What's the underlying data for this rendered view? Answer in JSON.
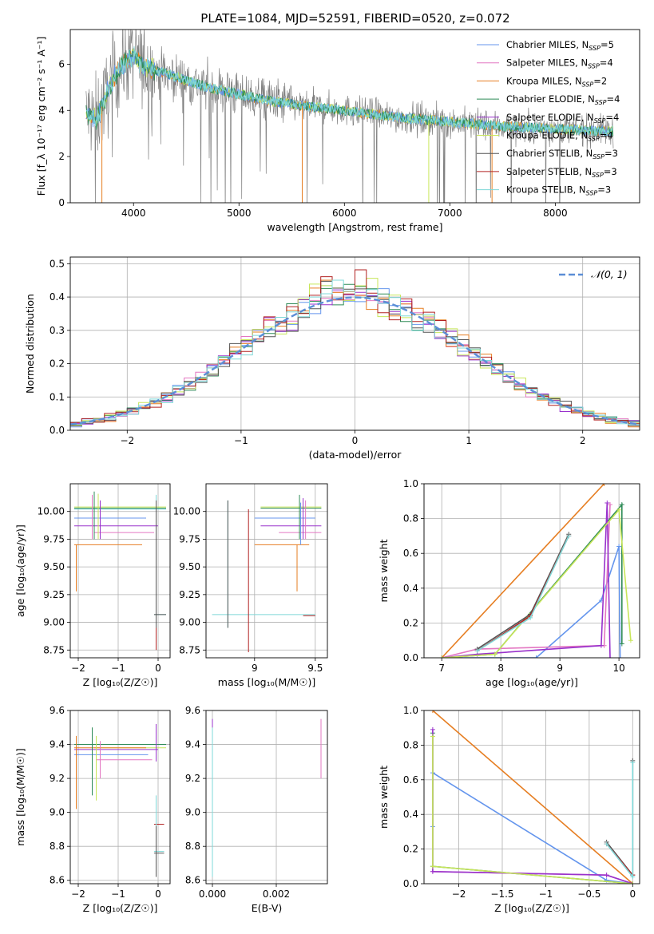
{
  "figure": {
    "title": "PLATE=1084, MJD=52591, FIBERID=0520, z=0.072"
  },
  "colors": {
    "series": [
      "#6495ed",
      "#e377c2",
      "#e67e22",
      "#2e8b57",
      "#9932cc",
      "#c8e65a",
      "#555555",
      "#b22222",
      "#7fd8d8"
    ],
    "data": "#808080",
    "grid": "#b0b0b0",
    "gauss": "#5b8ed6"
  },
  "chart_data": [
    {
      "id": "spectrum",
      "type": "line",
      "xlabel": "wavelength [Angstrom, rest frame]",
      "ylabel": "Flux [f_λ 10⁻¹⁷ erg cm⁻² s⁻¹ A⁻¹]",
      "xlim": [
        3400,
        8800
      ],
      "ylim": [
        0,
        7.5
      ],
      "xticks": [
        4000,
        5000,
        6000,
        7000,
        8000
      ],
      "yticks": [
        0,
        2,
        4,
        6
      ],
      "grid": false,
      "legend": "top-right",
      "legend_entries": [
        {
          "label": "Chabrier MILES, N",
          "sub": "SSP",
          "tail": "=5"
        },
        {
          "label": "Salpeter MILES, N",
          "sub": "SSP",
          "tail": "=4"
        },
        {
          "label": "Kroupa MILES, N",
          "sub": "SSP",
          "tail": "=2"
        },
        {
          "label": "Chabrier ELODIE, N",
          "sub": "SSP",
          "tail": "=4"
        },
        {
          "label": "Salpeter ELODIE, N",
          "sub": "SSP",
          "tail": "=4"
        },
        {
          "label": "Kroupa ELODIE, N",
          "sub": "SSP",
          "tail": "=4"
        },
        {
          "label": "Chabrier STELIB, N",
          "sub": "SSP",
          "tail": "=3"
        },
        {
          "label": "Salpeter STELIB, N",
          "sub": "SSP",
          "tail": "=3"
        },
        {
          "label": "Kroupa STELIB, N",
          "sub": "SSP",
          "tail": "=3"
        }
      ],
      "data_range": [
        3550,
        8550
      ],
      "model_shape": {
        "x": [
          3550,
          3650,
          3800,
          3900,
          4000,
          4100,
          4300,
          4500,
          4700,
          5000,
          5300,
          5600,
          6000,
          6500,
          7000,
          7500,
          8000,
          8500
        ],
        "y": [
          3.9,
          3.6,
          5.3,
          6.0,
          6.4,
          5.9,
          5.6,
          5.3,
          5.0,
          4.7,
          4.4,
          4.2,
          4.0,
          3.7,
          3.5,
          3.3,
          3.2,
          3.1
        ]
      },
      "model_dips": [
        3700,
        5600,
        6800,
        7400
      ],
      "model_dip_colors": [
        "#e67e22",
        "#e67e22",
        "#c8e65a",
        "#e67e22"
      ]
    },
    {
      "id": "residuals",
      "type": "line",
      "xlabel": "(data-model)/error",
      "ylabel": "Normed distribution",
      "xlim": [
        -2.5,
        2.5
      ],
      "ylim": [
        0,
        0.52
      ],
      "xticks": [
        -2,
        -1,
        0,
        1,
        2
      ],
      "yticks": [
        0.0,
        0.1,
        0.2,
        0.3,
        0.4,
        0.5
      ],
      "grid": true,
      "legend": "top-right",
      "legend_label": "𝒩(0, 1)",
      "bin_width": 0.1
    },
    {
      "id": "age_vs_Z",
      "type": "scatter",
      "xlabel": "Z [log₁₀(Z/Z☉)]",
      "ylabel": "age  [log₁₀(age/yr)]",
      "xlim": [
        -2.2,
        0.3
      ],
      "ylim": [
        8.68,
        10.25
      ],
      "xticks": [
        -2,
        -1,
        0
      ],
      "yticks": [
        8.75,
        9.0,
        9.25,
        9.5,
        9.75,
        10.0
      ],
      "grid": true,
      "hlines": [
        {
          "y": 10.04,
          "x": [
            -2.1,
            0.2
          ],
          "c": 5
        },
        {
          "y": 10.03,
          "x": [
            -2.1,
            0.2
          ],
          "c": 3
        },
        {
          "y": 10.02,
          "x": [
            -2.1,
            0.2
          ],
          "c": 8
        },
        {
          "y": 9.94,
          "x": [
            -2.1,
            -0.3
          ],
          "c": 0
        },
        {
          "y": 9.87,
          "x": [
            -2.1,
            0.0
          ],
          "c": 4
        },
        {
          "y": 9.81,
          "x": [
            -1.6,
            -0.1
          ],
          "c": 1
        },
        {
          "y": 9.7,
          "x": [
            -2.1,
            -0.4
          ],
          "c": 2
        },
        {
          "y": 9.07,
          "x": [
            -0.1,
            0.2
          ],
          "c": 8
        },
        {
          "y": 9.07,
          "x": [
            -0.1,
            0.2
          ],
          "c": 6
        }
      ],
      "vlines": [
        {
          "x": -1.6,
          "y": [
            9.75,
            10.18
          ],
          "c": 3
        },
        {
          "x": -1.5,
          "y": [
            9.75,
            10.16
          ],
          "c": 5
        },
        {
          "x": -1.65,
          "y": [
            9.75,
            10.15
          ],
          "c": 1
        },
        {
          "x": -1.45,
          "y": [
            9.75,
            10.1
          ],
          "c": 4
        },
        {
          "x": -2.05,
          "y": [
            9.28,
            9.7
          ],
          "c": 2
        },
        {
          "x": -0.05,
          "y": [
            8.9,
            10.15
          ],
          "c": 8
        },
        {
          "x": -0.05,
          "y": [
            8.9,
            10.1
          ],
          "c": 6
        },
        {
          "x": -0.05,
          "y": [
            8.75,
            8.95
          ],
          "c": 7
        }
      ]
    },
    {
      "id": "age_vs_mass",
      "type": "scatter",
      "xlabel": "mass [log₁₀(M/M☉)]",
      "xlim": [
        8.6,
        9.6
      ],
      "ylim": [
        8.68,
        10.25
      ],
      "xticks": [
        9.0,
        9.5
      ],
      "yticks": [
        8.75,
        9.0,
        9.25,
        9.5,
        9.75,
        10.0
      ],
      "grid": true,
      "hlines": [
        {
          "y": 10.04,
          "x": [
            9.05,
            9.55
          ],
          "c": 5
        },
        {
          "y": 10.03,
          "x": [
            9.05,
            9.55
          ],
          "c": 3
        },
        {
          "y": 9.94,
          "x": [
            9.0,
            9.5
          ],
          "c": 0
        },
        {
          "y": 9.87,
          "x": [
            9.05,
            9.55
          ],
          "c": 4
        },
        {
          "y": 9.81,
          "x": [
            9.2,
            9.55
          ],
          "c": 1
        },
        {
          "y": 9.7,
          "x": [
            9.0,
            9.45
          ],
          "c": 2
        },
        {
          "y": 9.07,
          "x": [
            8.65,
            9.5
          ],
          "c": 8
        },
        {
          "y": 9.06,
          "x": [
            9.4,
            9.5
          ],
          "c": 7
        }
      ],
      "vlines": [
        {
          "x": 8.78,
          "y": [
            8.95,
            10.1
          ],
          "c": 8
        },
        {
          "x": 8.78,
          "y": [
            8.95,
            10.1
          ],
          "c": 6
        },
        {
          "x": 8.95,
          "y": [
            8.73,
            10.02
          ],
          "c": 7
        },
        {
          "x": 9.37,
          "y": [
            9.75,
            10.15
          ],
          "c": 3
        },
        {
          "x": 9.4,
          "y": [
            9.75,
            10.12
          ],
          "c": 4
        },
        {
          "x": 9.42,
          "y": [
            9.75,
            10.1
          ],
          "c": 1
        },
        {
          "x": 9.35,
          "y": [
            9.28,
            9.7
          ],
          "c": 2
        },
        {
          "x": 9.38,
          "y": [
            9.7,
            10.08
          ],
          "c": 0
        }
      ]
    },
    {
      "id": "weight_vs_age",
      "type": "line",
      "xlabel": "age  [log₁₀(age/yr)]",
      "ylabel": "mass weight",
      "xlim": [
        6.7,
        10.35
      ],
      "ylim": [
        0,
        1
      ],
      "xticks": [
        7,
        8,
        9,
        10
      ],
      "yticks": [
        0.0,
        0.2,
        0.4,
        0.6,
        0.8,
        1.0
      ],
      "grid": true,
      "series": [
        {
          "c": 0,
          "x": [
            7.0,
            8.6,
            9.7,
            10.0,
            10.02
          ],
          "y": [
            0.0,
            0.0,
            0.33,
            0.64,
            0.0
          ]
        },
        {
          "c": 1,
          "x": [
            7.0,
            7.6,
            9.75,
            9.85
          ],
          "y": [
            0.0,
            0.05,
            0.07,
            0.88
          ]
        },
        {
          "c": 2,
          "x": [
            7.0,
            9.75
          ],
          "y": [
            0.0,
            1.0
          ]
        },
        {
          "c": 3,
          "x": [
            7.0,
            7.9,
            10.05,
            10.05
          ],
          "y": [
            0.0,
            0.02,
            0.88,
            0.08
          ]
        },
        {
          "c": 4,
          "x": [
            7.0,
            7.6,
            9.7,
            9.8,
            9.85
          ],
          "y": [
            0.0,
            0.02,
            0.07,
            0.89,
            0.0
          ]
        },
        {
          "c": 5,
          "x": [
            7.0,
            7.9,
            10.0,
            10.2
          ],
          "y": [
            0.0,
            0.02,
            0.85,
            0.1
          ]
        },
        {
          "c": 6,
          "x": [
            7.6,
            8.5,
            9.15
          ],
          "y": [
            0.05,
            0.25,
            0.71
          ]
        },
        {
          "c": 7,
          "x": [
            7.6,
            8.5,
            9.15
          ],
          "y": [
            0.04,
            0.24,
            0.7
          ]
        },
        {
          "c": 8,
          "x": [
            7.6,
            8.5,
            9.15
          ],
          "y": [
            0.04,
            0.23,
            0.7
          ]
        }
      ]
    },
    {
      "id": "mass_vs_Z",
      "type": "scatter",
      "xlabel": "Z [log₁₀(Z/Z☉)]",
      "ylabel": "mass [log₁₀(M/M☉)]",
      "xlim": [
        -2.2,
        0.3
      ],
      "ylim": [
        8.58,
        9.6
      ],
      "xticks": [
        -2,
        -1,
        0
      ],
      "yticks": [
        8.6,
        8.8,
        9.0,
        9.2,
        9.4,
        9.6
      ],
      "grid": true,
      "hlines": [
        {
          "y": 9.4,
          "x": [
            -2.1,
            0.2
          ],
          "c": 3
        },
        {
          "y": 9.38,
          "x": [
            -1.6,
            0.2
          ],
          "c": 5
        },
        {
          "y": 9.37,
          "x": [
            -2.1,
            0.0
          ],
          "c": 4
        },
        {
          "y": 9.34,
          "x": [
            -2.1,
            -0.25
          ],
          "c": 0
        },
        {
          "y": 9.31,
          "x": [
            -1.55,
            -0.15
          ],
          "c": 1
        },
        {
          "y": 9.38,
          "x": [
            -2.1,
            -0.3
          ],
          "c": 2
        },
        {
          "y": 8.93,
          "x": [
            -0.1,
            0.15
          ],
          "c": 7
        },
        {
          "y": 8.77,
          "x": [
            -0.1,
            0.15
          ],
          "c": 8
        },
        {
          "y": 8.76,
          "x": [
            -0.1,
            0.15
          ],
          "c": 6
        }
      ],
      "vlines": [
        {
          "x": -1.65,
          "y": [
            9.1,
            9.5
          ],
          "c": 3
        },
        {
          "x": -1.55,
          "y": [
            9.07,
            9.45
          ],
          "c": 5
        },
        {
          "x": -1.45,
          "y": [
            9.2,
            9.42
          ],
          "c": 1
        },
        {
          "x": -2.05,
          "y": [
            9.02,
            9.45
          ],
          "c": 2
        },
        {
          "x": -0.05,
          "y": [
            9.3,
            9.52
          ],
          "c": 4
        },
        {
          "x": -0.05,
          "y": [
            8.62,
            9.1
          ],
          "c": 8
        },
        {
          "x": -0.05,
          "y": [
            8.62,
            8.92
          ],
          "c": 6
        }
      ]
    },
    {
      "id": "mass_vs_ebv",
      "type": "scatter",
      "xlabel": "E(B-V)",
      "xlim": [
        -0.0002,
        0.0036
      ],
      "ylim": [
        8.58,
        9.6
      ],
      "xticks": [
        0.0,
        0.002
      ],
      "xtick_labels": [
        "0.000",
        "0.002"
      ],
      "yticks": [
        8.6,
        8.8,
        9.0,
        9.2,
        9.4,
        9.6
      ],
      "grid": true,
      "vlines": [
        {
          "x": 0.0,
          "y": [
            9.35,
            9.55
          ],
          "c": 4
        },
        {
          "x": 0.0,
          "y": [
            9.3,
            9.5
          ],
          "c": 7
        },
        {
          "x": 0.0,
          "y": [
            8.62,
            9.5
          ],
          "c": 8
        },
        {
          "x": 0.0034,
          "y": [
            9.2,
            9.55
          ],
          "c": 1
        }
      ],
      "hlines": [
        {
          "y": 9.6,
          "x": [
            0.0,
            0.0034
          ],
          "c": 6
        }
      ]
    },
    {
      "id": "weight_vs_Z",
      "type": "line",
      "xlabel": "Z [log₁₀(Z/Z☉)]",
      "ylabel": "mass weight",
      "xlim": [
        -2.4,
        0.08
      ],
      "ylim": [
        0,
        1
      ],
      "xticks": [
        -2.0,
        -1.5,
        -1.0,
        -0.5,
        0.0
      ],
      "yticks": [
        0.0,
        0.2,
        0.4,
        0.6,
        0.8,
        1.0
      ],
      "grid": true,
      "series": [
        {
          "c": 0,
          "x": [
            -2.3,
            -2.3,
            -0.3,
            0.0
          ],
          "y": [
            0.33,
            0.64,
            0.02,
            0.0
          ]
        },
        {
          "c": 1,
          "x": [
            -2.3,
            -0.3,
            0.0
          ],
          "y": [
            0.07,
            0.05,
            0.0
          ]
        },
        {
          "c": 2,
          "x": [
            -2.3,
            0.0
          ],
          "y": [
            1.0,
            0.0
          ]
        },
        {
          "c": 3,
          "x": [
            -2.3,
            -2.3,
            0.0
          ],
          "y": [
            0.87,
            0.1,
            0.0
          ]
        },
        {
          "c": 4,
          "x": [
            -2.3,
            -2.3,
            -0.3,
            0.0
          ],
          "y": [
            0.89,
            0.07,
            0.05,
            0.0
          ]
        },
        {
          "c": 5,
          "x": [
            -2.3,
            -2.3,
            0.0
          ],
          "y": [
            0.85,
            0.1,
            0.0
          ]
        },
        {
          "c": 6,
          "x": [
            -0.3,
            0.0,
            0.0
          ],
          "y": [
            0.24,
            0.05,
            0.71
          ]
        },
        {
          "c": 7,
          "x": [
            -0.3,
            0.0
          ],
          "y": [
            0.23,
            0.05
          ]
        },
        {
          "c": 8,
          "x": [
            -0.3,
            0.0,
            0.0
          ],
          "y": [
            0.23,
            0.04,
            0.7
          ]
        }
      ]
    }
  ]
}
